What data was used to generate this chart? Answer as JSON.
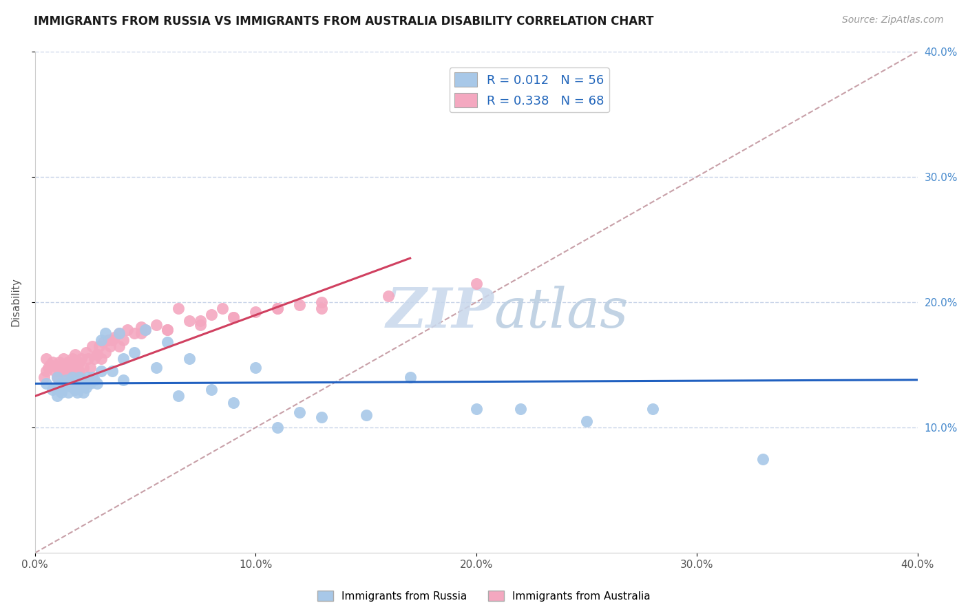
{
  "title": "IMMIGRANTS FROM RUSSIA VS IMMIGRANTS FROM AUSTRALIA DISABILITY CORRELATION CHART",
  "source": "Source: ZipAtlas.com",
  "ylabel": "Disability",
  "xlim": [
    0.0,
    0.4
  ],
  "ylim": [
    0.0,
    0.4
  ],
  "x_ticks": [
    0.0,
    0.1,
    0.2,
    0.3,
    0.4
  ],
  "y_ticks": [
    0.1,
    0.2,
    0.3,
    0.4
  ],
  "x_tick_labels": [
    "0.0%",
    "10.0%",
    "20.0%",
    "30.0%",
    "40.0%"
  ],
  "y_tick_labels_right": [
    "10.0%",
    "20.0%",
    "30.0%",
    "40.0%"
  ],
  "legend_r_russia": "R = 0.012",
  "legend_n_russia": "N = 56",
  "legend_r_australia": "R = 0.338",
  "legend_n_australia": "N = 68",
  "russia_color": "#a8c8e8",
  "australia_color": "#f4a8c0",
  "russia_line_color": "#2060c0",
  "australia_line_color": "#d04060",
  "diagonal_color": "#c8a0a8",
  "watermark_color": "#c8d8ec",
  "russia_scatter_x": [
    0.005,
    0.008,
    0.01,
    0.01,
    0.012,
    0.012,
    0.013,
    0.014,
    0.015,
    0.015,
    0.016,
    0.017,
    0.018,
    0.018,
    0.019,
    0.02,
    0.02,
    0.021,
    0.022,
    0.022,
    0.023,
    0.024,
    0.025,
    0.026,
    0.027,
    0.028,
    0.03,
    0.032,
    0.035,
    0.038,
    0.04,
    0.045,
    0.05,
    0.055,
    0.06,
    0.065,
    0.07,
    0.08,
    0.09,
    0.1,
    0.11,
    0.12,
    0.13,
    0.15,
    0.17,
    0.2,
    0.22,
    0.25,
    0.28,
    0.33,
    0.009,
    0.014,
    0.019,
    0.024,
    0.03,
    0.04
  ],
  "russia_scatter_y": [
    0.135,
    0.13,
    0.14,
    0.125,
    0.135,
    0.128,
    0.132,
    0.138,
    0.128,
    0.135,
    0.133,
    0.14,
    0.13,
    0.138,
    0.135,
    0.132,
    0.14,
    0.135,
    0.128,
    0.138,
    0.132,
    0.14,
    0.135,
    0.14,
    0.138,
    0.135,
    0.17,
    0.175,
    0.145,
    0.175,
    0.155,
    0.16,
    0.178,
    0.148,
    0.168,
    0.125,
    0.155,
    0.13,
    0.12,
    0.148,
    0.1,
    0.112,
    0.108,
    0.11,
    0.14,
    0.115,
    0.115,
    0.105,
    0.115,
    0.075,
    0.132,
    0.135,
    0.128,
    0.135,
    0.145,
    0.138
  ],
  "australia_scatter_x": [
    0.004,
    0.005,
    0.006,
    0.007,
    0.008,
    0.009,
    0.01,
    0.01,
    0.011,
    0.012,
    0.013,
    0.013,
    0.014,
    0.015,
    0.015,
    0.016,
    0.017,
    0.018,
    0.018,
    0.019,
    0.02,
    0.021,
    0.022,
    0.023,
    0.024,
    0.025,
    0.026,
    0.027,
    0.028,
    0.029,
    0.03,
    0.031,
    0.032,
    0.033,
    0.034,
    0.035,
    0.036,
    0.038,
    0.04,
    0.042,
    0.045,
    0.048,
    0.05,
    0.055,
    0.06,
    0.065,
    0.07,
    0.075,
    0.08,
    0.085,
    0.09,
    0.1,
    0.11,
    0.12,
    0.13,
    0.005,
    0.012,
    0.02,
    0.028,
    0.038,
    0.048,
    0.06,
    0.075,
    0.09,
    0.11,
    0.13,
    0.16,
    0.2
  ],
  "australia_scatter_y": [
    0.14,
    0.145,
    0.148,
    0.15,
    0.152,
    0.145,
    0.14,
    0.148,
    0.152,
    0.145,
    0.148,
    0.155,
    0.145,
    0.14,
    0.152,
    0.148,
    0.155,
    0.145,
    0.158,
    0.148,
    0.145,
    0.155,
    0.148,
    0.16,
    0.155,
    0.148,
    0.165,
    0.155,
    0.158,
    0.165,
    0.155,
    0.168,
    0.16,
    0.17,
    0.165,
    0.17,
    0.172,
    0.175,
    0.17,
    0.178,
    0.175,
    0.18,
    0.178,
    0.182,
    0.178,
    0.195,
    0.185,
    0.185,
    0.19,
    0.195,
    0.188,
    0.192,
    0.195,
    0.198,
    0.195,
    0.155,
    0.148,
    0.152,
    0.158,
    0.165,
    0.175,
    0.178,
    0.182,
    0.188,
    0.195,
    0.2,
    0.205,
    0.215
  ],
  "russia_line_x": [
    0.0,
    0.4
  ],
  "russia_line_y": [
    0.135,
    0.138
  ],
  "australia_line_x": [
    0.0,
    0.17
  ],
  "australia_line_y": [
    0.125,
    0.235
  ]
}
